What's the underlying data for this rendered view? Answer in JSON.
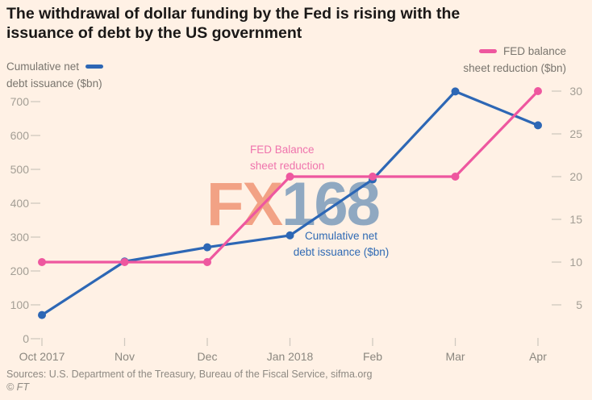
{
  "title_lines": {
    "line1": "The withdrawal of dollar funding by the Fed is rising with the",
    "line2": "issuance of debt by the US government"
  },
  "legend_left": {
    "line1": "Cumulative net",
    "line2": "debt issuance ($bn)"
  },
  "legend_right": {
    "line1": "FED balance",
    "line2": "sheet reduction ($bn)"
  },
  "annotations": {
    "pink_line1": "FED Balance",
    "pink_line2": "sheet reduction",
    "blue_line1": "Cumulative net",
    "blue_line2": "debt issuance ($bn)"
  },
  "watermark": {
    "part1": "FX",
    "part2": "168"
  },
  "source": "Sources: U.S. Department of the Treasury, Bureau of the Fiscal Service, sifma.org",
  "copyright": "© FT",
  "colors": {
    "background": "#fff1e5",
    "blue": "#2d67b5",
    "pink": "#ee579f",
    "axis_text": "#a39e95",
    "month_text": "#8b877f",
    "tick": "#d0c9bf",
    "watermark_orange": "#f2a285",
    "watermark_bluegray": "#8fa8c1"
  },
  "chart_data": {
    "type": "line",
    "categories": [
      "Oct 2017",
      "Nov",
      "Dec",
      "Jan 2018",
      "Feb",
      "Mar",
      "Apr"
    ],
    "series": [
      {
        "name": "Cumulative net debt issuance ($bn)",
        "axis": "left",
        "color_key": "blue",
        "values": [
          70,
          228,
          270,
          305,
          470,
          730,
          630
        ]
      },
      {
        "name": "FED balance sheet reduction ($bn)",
        "axis": "right",
        "color_key": "pink",
        "values": [
          10,
          10,
          10,
          20,
          20,
          20,
          30
        ]
      }
    ],
    "left_axis": {
      "label": "Cumulative net debt issuance ($bn)",
      "ticks": [
        0,
        100,
        200,
        300,
        400,
        500,
        600,
        700
      ],
      "range": [
        0,
        750
      ]
    },
    "right_axis": {
      "label": "FED balance sheet reduction ($bn)",
      "ticks": [
        5,
        10,
        15,
        20,
        25,
        30
      ],
      "range": [
        1,
        31
      ]
    },
    "grid": false,
    "legend_position": "top"
  }
}
